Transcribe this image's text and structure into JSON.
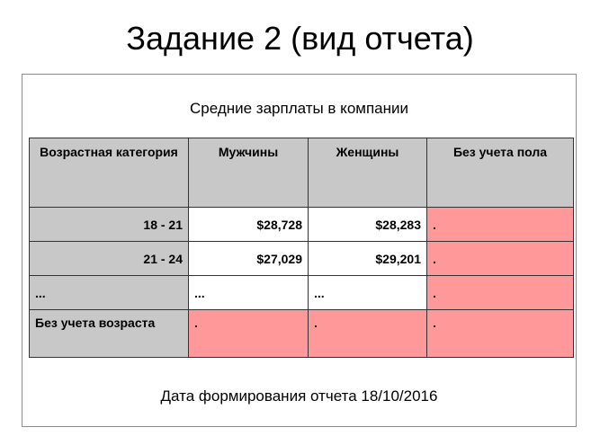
{
  "title": "Задание 2 (вид отчета)",
  "report": {
    "caption": "Средние зарплаты в компании",
    "columns": [
      "Возрастная категория",
      "Мужчины",
      "Женщины",
      "Без учета пола"
    ],
    "rows": [
      {
        "label": "18 - 21",
        "men": "$28,728",
        "women": "$28,283",
        "total": "."
      },
      {
        "label": "21 - 24",
        "men": "$27,029",
        "women": "$29,201",
        "total": "."
      },
      {
        "label": "...",
        "men": "...",
        "women": "...",
        "total": "."
      },
      {
        "label": "Без учета возраста",
        "men": ".",
        "women": ".",
        "total": "."
      }
    ],
    "date_text": "Дата формирования отчета 18/10/2016"
  },
  "colors": {
    "header_gray": "#c8c8c8",
    "highlight_pink": "#ff9999"
  }
}
